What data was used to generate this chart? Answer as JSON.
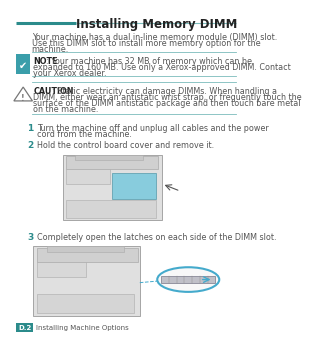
{
  "title": "Installing Memory DIMM",
  "teal": "#2B8B8B",
  "teal_light": "#7BBCBC",
  "bg_color": "#FFFFFF",
  "dark_text": "#222222",
  "gray_text": "#555555",
  "intro_text_line1": "Your machine has a dual in-line memory module (DIMM) slot.",
  "intro_text_line2": "Use this DIMM slot to install more memory option for the",
  "intro_text_line3": "machine.",
  "note_title": "NOTE",
  "note_line1": ": Your machine has 32 MB of memory which can be",
  "note_line2": "expanded to 160 MB. Use only a Xerox-approved DIMM. Contact",
  "note_line3": "your Xerox dealer.",
  "caution_title": "CAUTION",
  "caution_line1": ": Static electricity can damage DIMMs. When handling a",
  "caution_line2": "DIMM, either wear an antistatic wrist strap, or frequently touch the",
  "caution_line3": "surface of the DIMM antistatic package and then touch bare metal",
  "caution_line4": "on the machine.",
  "step1_num": "1",
  "step1_line1": "Turn the machine off and unplug all cables and the power",
  "step1_line2": "cord from the machine.",
  "step2_num": "2",
  "step2_text": "Hold the control board cover and remove it.",
  "step3_num": "3",
  "step3_text": "Completely open the latches on each side of the DIMM slot.",
  "footer_label": "D.2",
  "footer_text": "Installing Machine Options"
}
